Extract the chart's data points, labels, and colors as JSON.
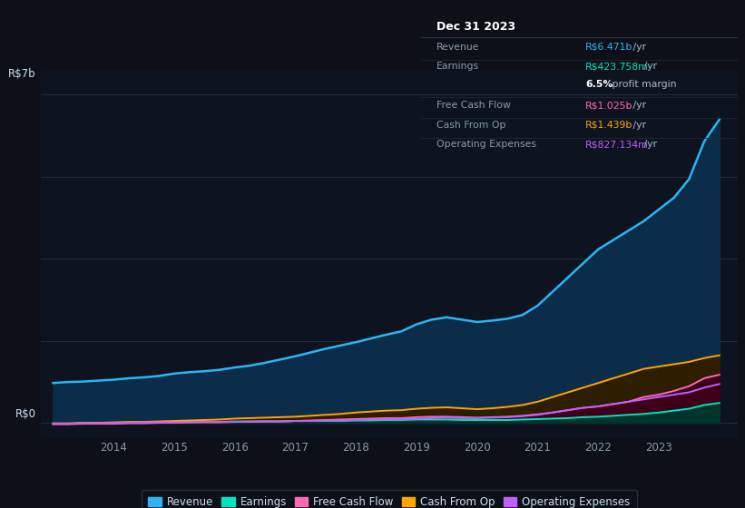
{
  "background_color": "#0d1117",
  "plot_bg_color": "#0d1420",
  "grid_color": "#1e2d3d",
  "years": [
    2013.0,
    2013.25,
    2013.5,
    2013.75,
    2014.0,
    2014.25,
    2014.5,
    2014.75,
    2015.0,
    2015.25,
    2015.5,
    2015.75,
    2016.0,
    2016.25,
    2016.5,
    2016.75,
    2017.0,
    2017.25,
    2017.5,
    2017.75,
    2018.0,
    2018.25,
    2018.5,
    2018.75,
    2019.0,
    2019.25,
    2019.5,
    2019.75,
    2020.0,
    2020.25,
    2020.5,
    2020.75,
    2021.0,
    2021.25,
    2021.5,
    2021.75,
    2022.0,
    2022.25,
    2022.5,
    2022.75,
    2023.0,
    2023.25,
    2023.5,
    2023.75,
    2024.0
  ],
  "revenue": [
    0.85,
    0.87,
    0.88,
    0.9,
    0.92,
    0.95,
    0.97,
    1.0,
    1.05,
    1.08,
    1.1,
    1.13,
    1.18,
    1.22,
    1.28,
    1.35,
    1.42,
    1.5,
    1.58,
    1.65,
    1.72,
    1.8,
    1.88,
    1.95,
    2.1,
    2.2,
    2.25,
    2.2,
    2.15,
    2.18,
    2.22,
    2.3,
    2.5,
    2.8,
    3.1,
    3.4,
    3.7,
    3.9,
    4.1,
    4.3,
    4.55,
    4.8,
    5.2,
    6.0,
    6.47
  ],
  "earnings": [
    -0.02,
    -0.02,
    -0.01,
    -0.01,
    0.0,
    0.0,
    0.01,
    0.01,
    0.02,
    0.02,
    0.02,
    0.02,
    0.03,
    0.03,
    0.03,
    0.03,
    0.04,
    0.04,
    0.04,
    0.04,
    0.05,
    0.05,
    0.06,
    0.06,
    0.07,
    0.07,
    0.07,
    0.06,
    0.06,
    0.06,
    0.06,
    0.07,
    0.08,
    0.09,
    0.1,
    0.12,
    0.13,
    0.15,
    0.17,
    0.19,
    0.22,
    0.26,
    0.3,
    0.38,
    0.424
  ],
  "free_cash_flow": [
    -0.03,
    -0.03,
    -0.02,
    -0.02,
    -0.02,
    -0.01,
    -0.01,
    0.0,
    0.0,
    0.01,
    0.01,
    0.01,
    0.02,
    0.02,
    0.03,
    0.03,
    0.04,
    0.05,
    0.06,
    0.07,
    0.08,
    0.09,
    0.1,
    0.1,
    0.12,
    0.13,
    0.13,
    0.12,
    0.11,
    0.12,
    0.13,
    0.15,
    0.18,
    0.22,
    0.27,
    0.32,
    0.35,
    0.4,
    0.45,
    0.55,
    0.6,
    0.68,
    0.78,
    0.95,
    1.025
  ],
  "cash_from_op": [
    -0.01,
    -0.01,
    0.0,
    0.0,
    0.01,
    0.02,
    0.02,
    0.03,
    0.04,
    0.05,
    0.06,
    0.07,
    0.09,
    0.1,
    0.11,
    0.12,
    0.13,
    0.15,
    0.17,
    0.19,
    0.22,
    0.24,
    0.26,
    0.27,
    0.3,
    0.32,
    0.33,
    0.31,
    0.29,
    0.31,
    0.34,
    0.38,
    0.45,
    0.55,
    0.65,
    0.75,
    0.85,
    0.95,
    1.05,
    1.15,
    1.2,
    1.25,
    1.3,
    1.38,
    1.439
  ],
  "operating_expenses": [
    -0.02,
    -0.02,
    -0.01,
    -0.01,
    0.0,
    0.0,
    0.01,
    0.01,
    0.01,
    0.01,
    0.02,
    0.02,
    0.02,
    0.03,
    0.03,
    0.03,
    0.04,
    0.04,
    0.05,
    0.05,
    0.06,
    0.07,
    0.08,
    0.08,
    0.09,
    0.1,
    0.11,
    0.1,
    0.1,
    0.11,
    0.12,
    0.14,
    0.17,
    0.22,
    0.27,
    0.32,
    0.35,
    0.4,
    0.45,
    0.5,
    0.55,
    0.6,
    0.65,
    0.75,
    0.827
  ],
  "revenue_color": "#29b6f6",
  "revenue_fill": "#0c2d4a",
  "earnings_color": "#00e5bf",
  "earnings_fill": "#00352d",
  "free_cash_flow_color": "#ff69b4",
  "free_cash_flow_fill": "#3d0018",
  "cash_from_op_color": "#ffa500",
  "cash_from_op_fill": "#2d1e00",
  "operating_expenses_color": "#bf5fff",
  "operating_expenses_fill": "#1e0a35",
  "xlim": [
    2012.8,
    2024.3
  ],
  "ylim": [
    -0.3,
    7.5
  ],
  "xtick_years": [
    2014,
    2015,
    2016,
    2017,
    2018,
    2019,
    2020,
    2021,
    2022,
    2023
  ],
  "legend_items": [
    {
      "label": "Revenue",
      "color": "#29b6f6"
    },
    {
      "label": "Earnings",
      "color": "#00e5bf"
    },
    {
      "label": "Free Cash Flow",
      "color": "#ff69b4"
    },
    {
      "label": "Cash From Op",
      "color": "#ffa500"
    },
    {
      "label": "Operating Expenses",
      "color": "#bf5fff"
    }
  ],
  "infobox": {
    "title": "Dec 31 2023",
    "title_color": "#ffffff",
    "bg_color": "#050810",
    "border_color": "#2a3040",
    "rows": [
      {
        "label": "Revenue",
        "label_color": "#8899aa",
        "value": "R$6.471b",
        "value_color": "#29b6f6",
        "suffix": " /yr",
        "extra": null
      },
      {
        "label": "Earnings",
        "label_color": "#8899aa",
        "value": "R$423.758m",
        "value_color": "#00e5bf",
        "suffix": " /yr",
        "extra": "6.5% profit margin"
      },
      {
        "label": "Free Cash Flow",
        "label_color": "#8899aa",
        "value": "R$1.025b",
        "value_color": "#ff69b4",
        "suffix": " /yr",
        "extra": null
      },
      {
        "label": "Cash From Op",
        "label_color": "#8899aa",
        "value": "R$1.439b",
        "value_color": "#ffa500",
        "suffix": " /yr",
        "extra": null
      },
      {
        "label": "Operating Expenses",
        "label_color": "#8899aa",
        "value": "R$827.134m",
        "value_color": "#bf5fff",
        "suffix": " /yr",
        "extra": null
      }
    ]
  }
}
